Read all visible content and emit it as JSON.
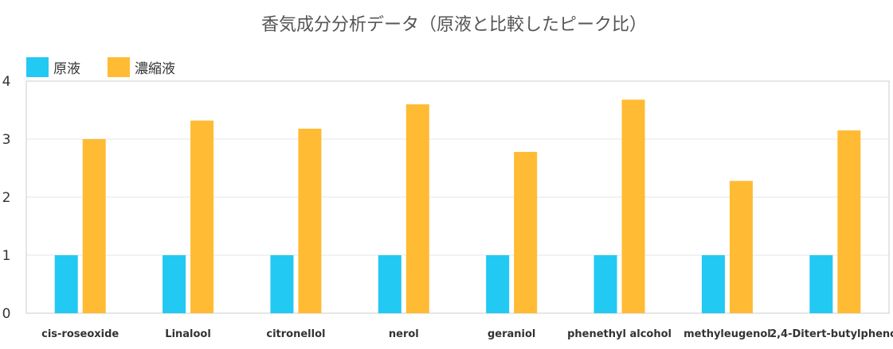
{
  "chart_data": {
    "type": "bar",
    "title": "香気成分分析データ（原液と比較したピーク比）",
    "categories": [
      "cis-roseoxide",
      "Linalool",
      "citronellol",
      "nerol",
      "geraniol",
      "phenethyl alcohol",
      "methyleugenol",
      "2,4-Ditert-butylphenol"
    ],
    "series": [
      {
        "name": "原液",
        "color": "#22c9f2",
        "values": [
          1,
          1,
          1,
          1,
          1,
          1,
          1,
          1
        ]
      },
      {
        "name": "濃縮液",
        "color": "#ffbb33",
        "values": [
          3.0,
          3.32,
          3.18,
          3.6,
          2.78,
          3.68,
          2.28,
          3.15
        ]
      }
    ],
    "yticks": [
      0,
      1,
      2,
      3,
      4
    ],
    "ylim": [
      0,
      4
    ],
    "grid": true,
    "legend_position": "top-left"
  }
}
